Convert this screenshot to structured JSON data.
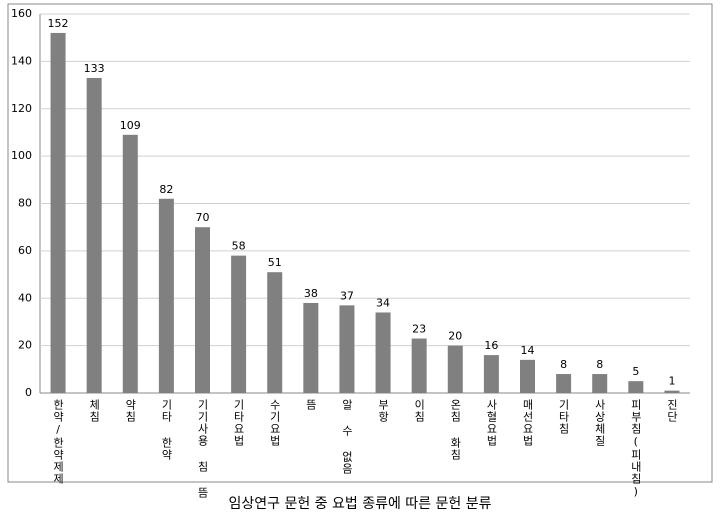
{
  "chart_data": {
    "type": "bar",
    "title": "임상연구 문헌 중 요법 종류에 따른 문헌 분류",
    "categories": [
      "한약/한약제제",
      "체침",
      "약침",
      "기타 한약",
      "기기사용 침 뜸",
      "기타요법",
      "수기요법",
      "뜸",
      "알 수 없음",
      "부항",
      "이침",
      "온침 화침",
      "사혈요법",
      "매선요법",
      "기타침",
      "사상체질",
      "피부침(피내침)",
      "진단"
    ],
    "values": [
      152,
      133,
      109,
      82,
      70,
      58,
      51,
      38,
      37,
      34,
      23,
      20,
      16,
      14,
      8,
      8,
      5,
      1
    ],
    "color": "#808080",
    "ylim": [
      0,
      160
    ],
    "yticks": [
      0,
      20,
      40,
      60,
      80,
      100,
      120,
      140,
      160
    ],
    "grid": true
  }
}
